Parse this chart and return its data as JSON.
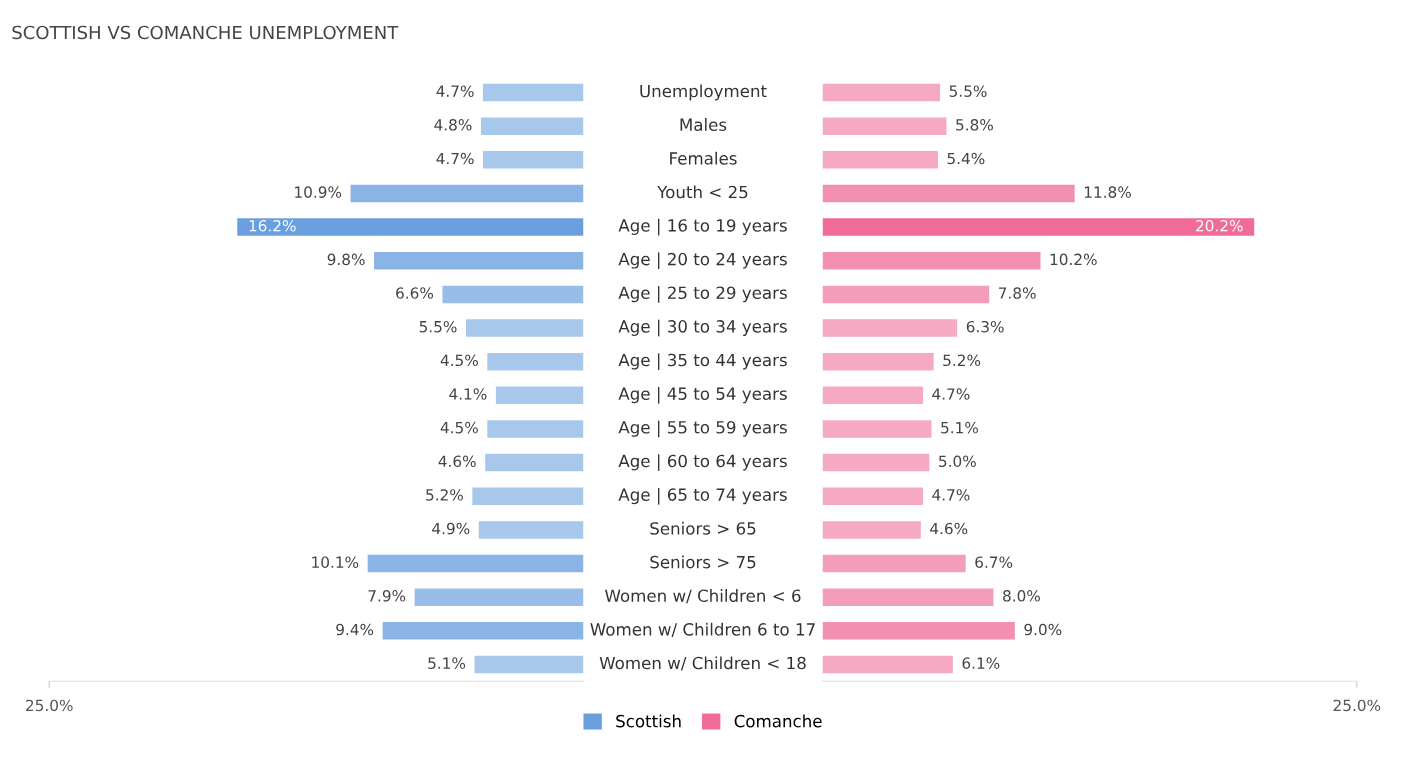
{
  "chart_data": [
    {
      "type": "bar",
      "orientation": "horizontal",
      "title": "SCOTTISH VS COMANCHE UNEMPLOYMENT",
      "categories": [
        "Unemployment",
        "Males",
        "Females",
        "Youth < 25",
        "Age | 16 to 19 years",
        "Age | 20 to 24 years",
        "Age | 25 to 29 years",
        "Age | 30 to 34 years",
        "Age | 35 to 44 years",
        "Age | 45 to 54 years",
        "Age | 55 to 59 years",
        "Age | 60 to 64 years",
        "Age | 65 to 74 years",
        "Seniors > 65",
        "Seniors > 75",
        "Women w/ Children < 6",
        "Women w/ Children 6 to 17",
        "Women w/ Children < 18"
      ],
      "series": [
        {
          "name": "Scottish",
          "color": "#6a9fdf",
          "values": [
            4.7,
            4.8,
            4.7,
            10.9,
            16.2,
            9.8,
            6.6,
            5.5,
            4.5,
            4.1,
            4.5,
            4.6,
            5.2,
            4.9,
            10.1,
            7.9,
            9.4,
            5.1
          ],
          "colors": [
            "#a8c8eb",
            "#a8c8eb",
            "#a8c8eb",
            "#8ab4e5",
            "#6a9fdf",
            "#8ab4e5",
            "#98bde8",
            "#a8c8eb",
            "#a8c8eb",
            "#a8c8eb",
            "#a8c8eb",
            "#a8c8eb",
            "#a8c8eb",
            "#a8c8eb",
            "#8ab4e5",
            "#98bde8",
            "#8ab4e5",
            "#a8c8eb"
          ],
          "value_labels": [
            "4.7%",
            "4.8%",
            "4.7%",
            "10.9%",
            "16.2%",
            "9.8%",
            "6.6%",
            "5.5%",
            "4.5%",
            "4.1%",
            "4.5%",
            "4.6%",
            "5.2%",
            "4.9%",
            "10.1%",
            "7.9%",
            "9.4%",
            "5.1%"
          ]
        }
      ],
      "xlim": [
        25,
        0
      ],
      "xticks": [
        {
          "value": 25,
          "label": "25.0%"
        }
      ],
      "legend": "bottom",
      "grid": false
    },
    {
      "type": "bar",
      "orientation": "horizontal",
      "categories": [
        null,
        null,
        null,
        null,
        null,
        null,
        null,
        null,
        null,
        null,
        null,
        null,
        null,
        null,
        null,
        null,
        null,
        null
      ],
      "series": [
        {
          "name": "Comanche",
          "color": "#f06b96",
          "values": [
            5.5,
            5.8,
            5.4,
            11.8,
            20.2,
            10.2,
            7.8,
            6.3,
            5.2,
            4.7,
            5.1,
            5.0,
            4.7,
            4.6,
            6.7,
            8.0,
            9.0,
            6.1
          ],
          "colors": [
            "#f5a9c3",
            "#f5a9c3",
            "#f5a9c3",
            "#f390b2",
            "#f06b96",
            "#f390b2",
            "#f49dba",
            "#f5a9c3",
            "#f5a9c3",
            "#f5a9c3",
            "#f5a9c3",
            "#f5a9c3",
            "#f5a9c3",
            "#f5a9c3",
            "#f49dba",
            "#f49dba",
            "#f390b2",
            "#f5a9c3"
          ],
          "value_labels": [
            "5.5%",
            "5.8%",
            "5.4%",
            "11.8%",
            "20.2%",
            "10.2%",
            "7.8%",
            "6.3%",
            "5.2%",
            "4.7%",
            "5.1%",
            "5.0%",
            "4.7%",
            "4.6%",
            "6.7%",
            "8.0%",
            "9.0%",
            "6.1%"
          ]
        }
      ],
      "xlim": [
        0,
        25
      ],
      "xticks": [
        {
          "value": 25,
          "label": "25.0%"
        }
      ],
      "tick_labels": "x",
      "legend": "bottom",
      "grid": false
    }
  ]
}
